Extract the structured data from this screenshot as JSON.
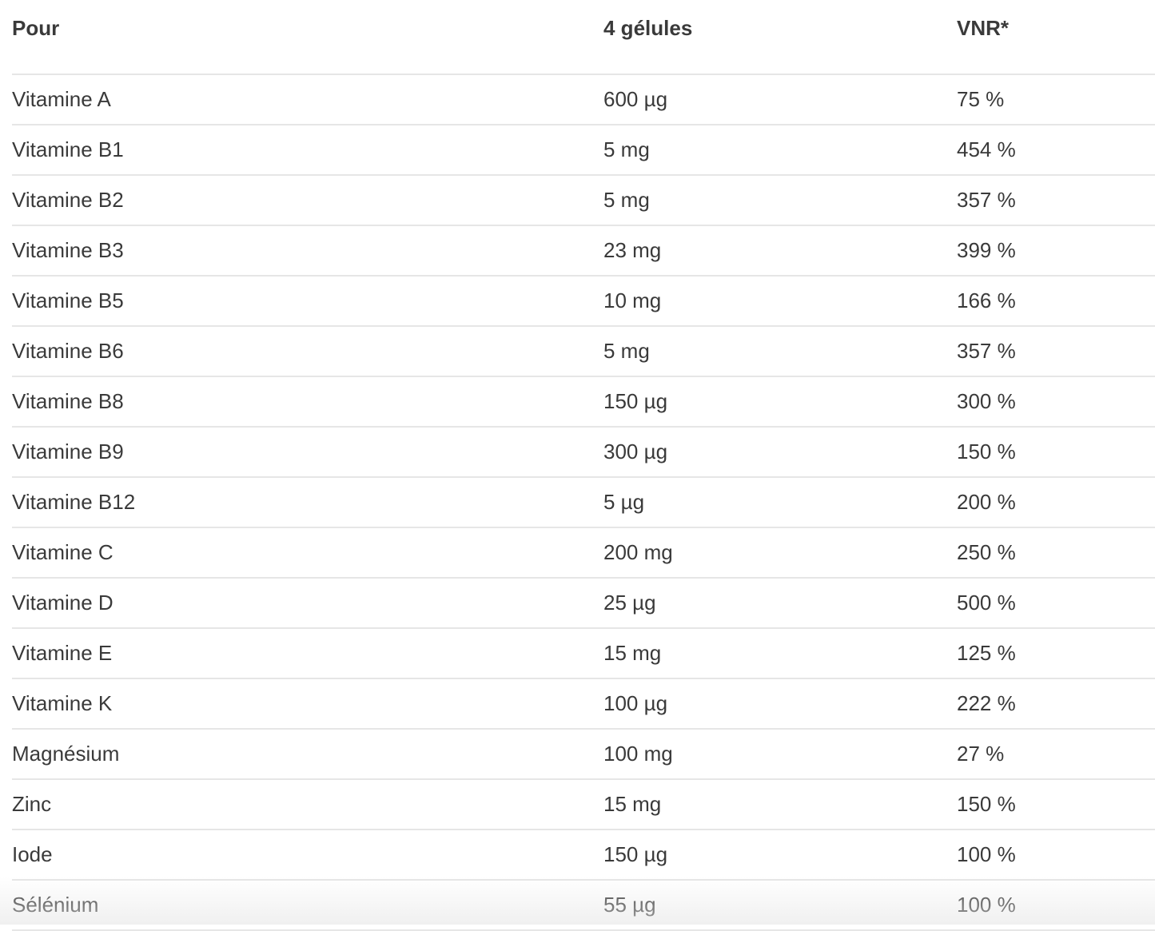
{
  "table": {
    "headers": [
      "Pour",
      "4 gélules",
      "VNR*"
    ],
    "rows": [
      [
        "Vitamine A",
        "600 µg",
        "75 %"
      ],
      [
        "Vitamine B1",
        "5 mg",
        "454 %"
      ],
      [
        "Vitamine B2",
        "5 mg",
        "357 %"
      ],
      [
        "Vitamine B3",
        "23 mg",
        "399 %"
      ],
      [
        "Vitamine B5",
        "10 mg",
        "166 %"
      ],
      [
        "Vitamine B6",
        "5 mg",
        "357 %"
      ],
      [
        "Vitamine B8",
        "150 µg",
        "300 %"
      ],
      [
        "Vitamine B9",
        "300 µg",
        "150 %"
      ],
      [
        "Vitamine B12",
        "5 µg",
        "200 %"
      ],
      [
        "Vitamine C",
        "200 mg",
        "250 %"
      ],
      [
        "Vitamine D",
        "25 µg",
        "500 %"
      ],
      [
        "Vitamine E",
        "15 mg",
        "125 %"
      ],
      [
        "Vitamine K",
        "100 µg",
        "222 %"
      ],
      [
        "Magnésium",
        "100 mg",
        "27 %"
      ],
      [
        "Zinc",
        "15 mg",
        "150 %"
      ],
      [
        "Iode",
        "150 µg",
        "100 %"
      ],
      [
        "Sélénium",
        "55 µg",
        "100 %"
      ]
    ]
  }
}
